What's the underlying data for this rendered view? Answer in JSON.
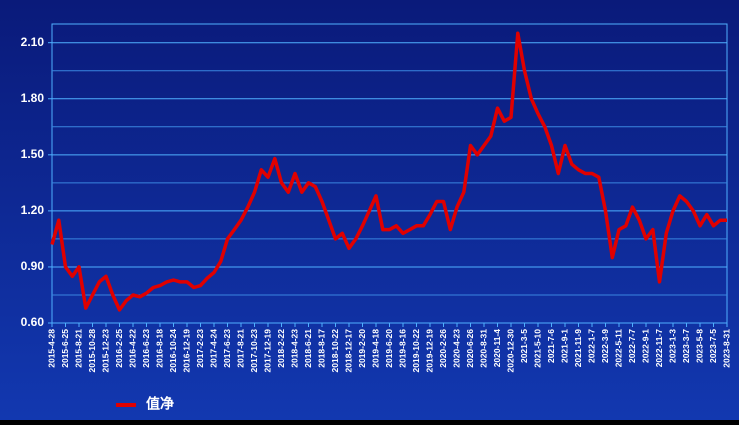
{
  "chart_data": {
    "type": "line",
    "categories": [
      "2015-4-28",
      null,
      "2015-6-25",
      null,
      "2015-8-21",
      null,
      "2015-10-28",
      null,
      "2015-12-23",
      null,
      "2016-2-25",
      null,
      "2016-4-22",
      null,
      "2016-6-23",
      null,
      "2016-8-18",
      null,
      "2016-10-24",
      null,
      "2016-12-19",
      null,
      "2017-2-23",
      null,
      "2017-4-24",
      null,
      "2017-6-23",
      null,
      "2017-8-21",
      null,
      "2017-10-23",
      null,
      "2017-12-19",
      null,
      "2018-2-22",
      null,
      "2018-4-23",
      null,
      "2018-6-21",
      null,
      "2018-8-17",
      null,
      "2018-10-22",
      null,
      "2018-12-17",
      null,
      "2019-2-20",
      null,
      "2019-4-18",
      null,
      "2019-6-20",
      null,
      "2019-8-16",
      null,
      "2019-10-22",
      null,
      "2019-12-19",
      null,
      "2020-2-26",
      null,
      "2020-4-23",
      null,
      "2020-6-26",
      null,
      "2020-8-31",
      null,
      "2020-11-4",
      null,
      "2020-12-30",
      null,
      "2021-3-5",
      null,
      "2021-5-10",
      null,
      "2021-7-6",
      null,
      "2021-9-1",
      null,
      "2021-11-9",
      null,
      "2022-1-7",
      null,
      "2022-3-9",
      null,
      "2022-5-11",
      null,
      "2022-7-7",
      null,
      "2022-9-1",
      null,
      "2022-11-7",
      null,
      "2023-1-3",
      null,
      "2023-3-7",
      null,
      "2023-5-8",
      null,
      "2023-7-5",
      null,
      "2023-8-31"
    ],
    "series": [
      {
        "name": "值净",
        "color": "#e00000",
        "values": [
          1.02,
          1.15,
          0.9,
          0.85,
          0.9,
          0.68,
          0.75,
          0.82,
          0.85,
          0.75,
          0.67,
          0.72,
          0.75,
          0.74,
          0.76,
          0.79,
          0.8,
          0.82,
          0.83,
          0.82,
          0.82,
          0.79,
          0.8,
          0.84,
          0.87,
          0.93,
          1.05,
          1.1,
          1.15,
          1.22,
          1.3,
          1.42,
          1.38,
          1.48,
          1.35,
          1.3,
          1.4,
          1.3,
          1.35,
          1.33,
          1.25,
          1.15,
          1.05,
          1.08,
          1.0,
          1.05,
          1.12,
          1.2,
          1.28,
          1.1,
          1.1,
          1.12,
          1.08,
          1.1,
          1.12,
          1.12,
          1.18,
          1.25,
          1.25,
          1.1,
          1.22,
          1.3,
          1.55,
          1.5,
          1.55,
          1.6,
          1.75,
          1.68,
          1.7,
          2.15,
          1.95,
          1.8,
          1.72,
          1.65,
          1.55,
          1.4,
          1.55,
          1.45,
          1.42,
          1.4,
          1.4,
          1.38,
          1.2,
          0.95,
          1.1,
          1.12,
          1.22,
          1.15,
          1.05,
          1.1,
          0.82,
          1.08,
          1.2,
          1.28,
          1.25,
          1.2,
          1.12,
          1.18,
          1.12,
          1.15,
          1.15
        ]
      }
    ],
    "ylim": [
      0.6,
      2.2
    ],
    "yticks": [
      {
        "value": 0.6,
        "label": "0.60"
      },
      {
        "value": 0.9,
        "label": "0.90"
      },
      {
        "value": 1.2,
        "label": "1.20"
      },
      {
        "value": 1.5,
        "label": "1.50"
      },
      {
        "value": 1.8,
        "label": "1.80"
      },
      {
        "value": 2.1,
        "label": "2.10"
      }
    ],
    "grid": true,
    "legend": "bottom-left"
  }
}
